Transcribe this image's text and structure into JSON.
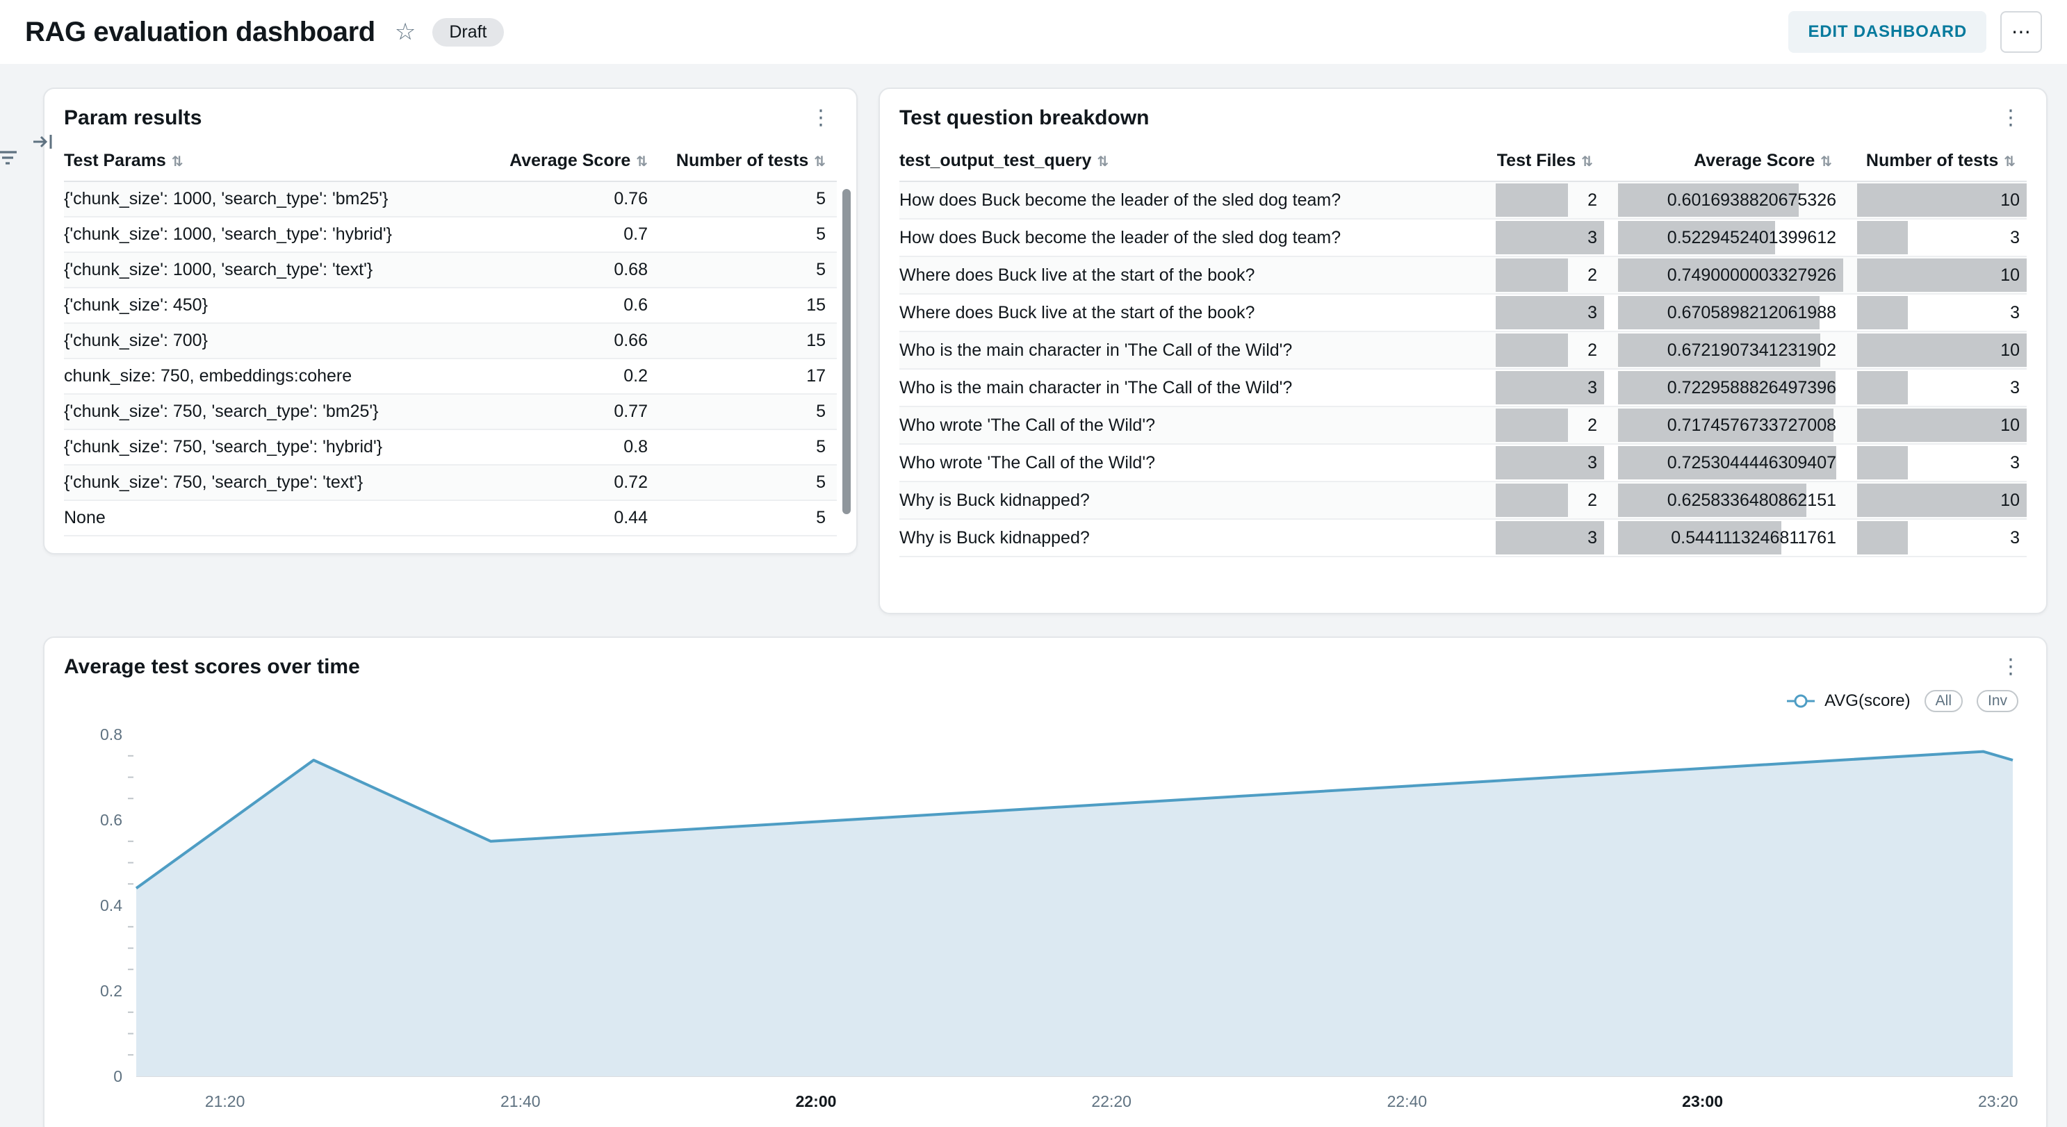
{
  "header": {
    "title": "RAG evaluation dashboard",
    "status_badge": "Draft",
    "edit_button_label": "EDIT DASHBOARD",
    "overflow_button_label": "⋯"
  },
  "param_results": {
    "title": "Param results",
    "columns": [
      "Test Params",
      "Average Score",
      "Number of tests"
    ],
    "rows": [
      [
        "{'chunk_size': 1000, 'search_type': 'bm25'}",
        "0.76",
        "5"
      ],
      [
        "{'chunk_size': 1000, 'search_type': 'hybrid'}",
        "0.7",
        "5"
      ],
      [
        "{'chunk_size': 1000, 'search_type': 'text'}",
        "0.68",
        "5"
      ],
      [
        "{'chunk_size': 450}",
        "0.6",
        "15"
      ],
      [
        "{'chunk_size': 700}",
        "0.66",
        "15"
      ],
      [
        "chunk_size: 750, embeddings:cohere",
        "0.2",
        "17"
      ],
      [
        "{'chunk_size': 750, 'search_type': 'bm25'}",
        "0.77",
        "5"
      ],
      [
        "{'chunk_size': 750, 'search_type': 'hybrid'}",
        "0.8",
        "5"
      ],
      [
        "{'chunk_size': 750, 'search_type': 'text'}",
        "0.72",
        "5"
      ],
      [
        "None",
        "0.44",
        "5"
      ]
    ]
  },
  "question_breakdown": {
    "title": "Test question breakdown",
    "columns": [
      "test_output_test_query",
      "Test Files",
      "Average Score",
      "Number of tests"
    ],
    "bar_color": "#c5c8cb",
    "rows": [
      {
        "query": "How does Buck become the leader of the sled dog team?",
        "files": 2,
        "score": "0.6016938820675326",
        "tests": 10
      },
      {
        "query": "How does Buck become the leader of the sled dog team?",
        "files": 3,
        "score": "0.5229452401399612",
        "tests": 3
      },
      {
        "query": "Where does Buck live at the start of the book?",
        "files": 2,
        "score": "0.7490000003327926",
        "tests": 10
      },
      {
        "query": "Where does Buck live at the start of the book?",
        "files": 3,
        "score": "0.6705898212061988",
        "tests": 3
      },
      {
        "query": "Who is the main character in 'The Call of the Wild'?",
        "files": 2,
        "score": "0.6721907341231902",
        "tests": 10
      },
      {
        "query": "Who is the main character in 'The Call of the Wild'?",
        "files": 3,
        "score": "0.7229588826497396",
        "tests": 3
      },
      {
        "query": "Who wrote 'The Call of the Wild'?",
        "files": 2,
        "score": "0.7174576733727008",
        "tests": 10
      },
      {
        "query": "Who wrote 'The Call of the Wild'?",
        "files": 3,
        "score": "0.7253044446309407",
        "tests": 3
      },
      {
        "query": "Why is Buck kidnapped?",
        "files": 2,
        "score": "0.6258336480862151",
        "tests": 10
      },
      {
        "query": "Why is Buck kidnapped?",
        "files": 3,
        "score": "0.5441113246811761",
        "tests": 3
      }
    ]
  },
  "chart_data": {
    "type": "area",
    "title": "Average test scores over time",
    "series_name": "AVG(score)",
    "legend_buttons": [
      "All",
      "Inv"
    ],
    "line_color": "#4E9DC4",
    "fill_color": "#DCE9F2",
    "ylim": [
      0,
      0.8
    ],
    "yticks": [
      0,
      0.2,
      0.4,
      0.6,
      0.8
    ],
    "y_minor_step": 0.05,
    "x_domain_minutes": [
      1274,
      1401
    ],
    "xticks": [
      {
        "m": 1280,
        "label": "21:20",
        "bold": false
      },
      {
        "m": 1300,
        "label": "21:40",
        "bold": false
      },
      {
        "m": 1320,
        "label": "22:00",
        "bold": true
      },
      {
        "m": 1340,
        "label": "22:20",
        "bold": false
      },
      {
        "m": 1360,
        "label": "22:40",
        "bold": false
      },
      {
        "m": 1380,
        "label": "23:00",
        "bold": true
      },
      {
        "m": 1400,
        "label": "23:20",
        "bold": false
      }
    ],
    "points": [
      {
        "m": 1274,
        "v": 0.44
      },
      {
        "m": 1286,
        "v": 0.74
      },
      {
        "m": 1298,
        "v": 0.55
      },
      {
        "m": 1399,
        "v": 0.76
      },
      {
        "m": 1401,
        "v": 0.74
      }
    ]
  }
}
